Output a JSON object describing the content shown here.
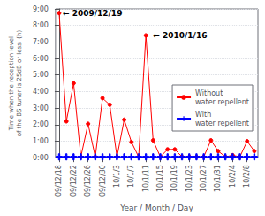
{
  "chart_data": {
    "type": "line",
    "xlabel": "Year / Month / Day",
    "ylabel": "Time when the reception level\nof the BS tuner is 25dB or less  (h)",
    "x": [
      0,
      1,
      2,
      3,
      4,
      5,
      6,
      7,
      8,
      9,
      10,
      11,
      12,
      13,
      14,
      15,
      16,
      17,
      18,
      19,
      20,
      21,
      22,
      23,
      24,
      25,
      26,
      27
    ],
    "xlim": [
      -0.5,
      27.5
    ],
    "xticks": [
      {
        "value": 0,
        "label": "09/12/18"
      },
      {
        "value": 2,
        "label": "09/12/22"
      },
      {
        "value": 4,
        "label": "09/12/26"
      },
      {
        "value": 6,
        "label": "09/12/30"
      },
      {
        "value": 8,
        "label": "10/1/3"
      },
      {
        "value": 10,
        "label": "10/1/7"
      },
      {
        "value": 12,
        "label": "10/1/11"
      },
      {
        "value": 14,
        "label": "10/1/15"
      },
      {
        "value": 16,
        "label": "10/1/19"
      },
      {
        "value": 18,
        "label": "10/1/23"
      },
      {
        "value": 20,
        "label": "10/1/27"
      },
      {
        "value": 22,
        "label": "10/1/31"
      },
      {
        "value": 24,
        "label": "10/2/4"
      },
      {
        "value": 26,
        "label": "10/2/8"
      }
    ],
    "ylim": [
      0,
      9.0
    ],
    "yticks": [
      {
        "value": 0,
        "label": "0:00"
      },
      {
        "value": 1,
        "label": "1:00"
      },
      {
        "value": 2,
        "label": "2:00"
      },
      {
        "value": 3,
        "label": "3:00"
      },
      {
        "value": 4,
        "label": "4:00"
      },
      {
        "value": 5,
        "label": "5:00"
      },
      {
        "value": 6,
        "label": "6:00"
      },
      {
        "value": 7,
        "label": "7:00"
      },
      {
        "value": 8,
        "label": "8:00"
      },
      {
        "value": 9,
        "label": "9:00"
      }
    ],
    "grid": true,
    "legend": "right",
    "series": [
      {
        "name": "Without\nwater repellent",
        "color": "#ff0000",
        "marker": "circle",
        "values": [
          8.75,
          2.2,
          4.5,
          0.05,
          2.05,
          0.05,
          3.6,
          3.2,
          0.05,
          2.3,
          0.95,
          0.05,
          7.4,
          1.05,
          0.05,
          0.5,
          0.5,
          0.05,
          0.05,
          0.05,
          0.05,
          1.05,
          0.4,
          0.05,
          0.15,
          0.05,
          1.0,
          0.4
        ]
      },
      {
        "name": "With\nwater repellent",
        "color": "#0000ff",
        "marker": "plus",
        "values": [
          0.05,
          0.05,
          0.05,
          0.05,
          0.05,
          0.05,
          0.05,
          0.05,
          0.05,
          0.05,
          0.05,
          0.05,
          0.05,
          0.05,
          0.05,
          0.05,
          0.05,
          0.05,
          0.05,
          0.05,
          0.05,
          0.05,
          0.05,
          0.05,
          0.05,
          0.05,
          0.05,
          0.05
        ]
      }
    ],
    "annotations": [
      {
        "text": "← 2009/12/19",
        "x": 0.5,
        "y": 8.75
      },
      {
        "text": "← 2010/1/16",
        "x": 13.0,
        "y": 7.4
      }
    ]
  }
}
